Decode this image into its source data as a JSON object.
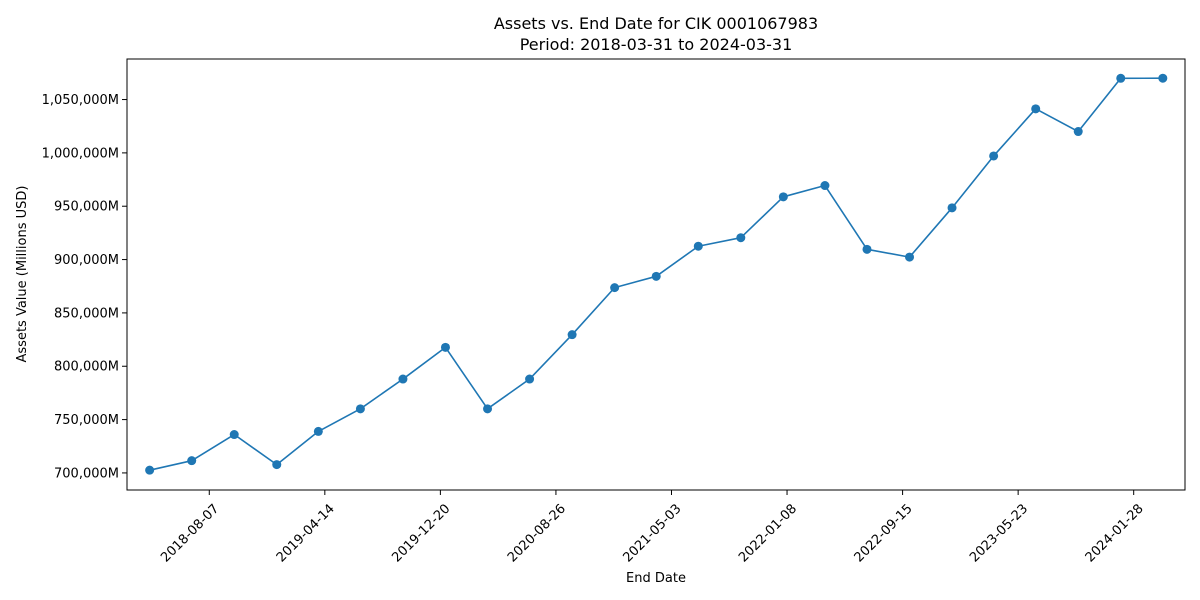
{
  "chart_data": {
    "type": "line",
    "title": "Assets vs. End Date for CIK 0001067983",
    "subtitle": "Period: 2018-03-31 to 2024-03-31",
    "xlabel": "End Date",
    "ylabel": "Assets Value (Millions USD)",
    "x_ticks": [
      "2018-08-07",
      "2019-04-14",
      "2019-12-20",
      "2020-08-26",
      "2021-05-03",
      "2022-01-08",
      "2022-09-15",
      "2023-05-23",
      "2024-01-28"
    ],
    "y_ticks": [
      700000,
      750000,
      800000,
      850000,
      900000,
      950000,
      1000000,
      1050000
    ],
    "y_tick_labels": [
      "700,000M",
      "750,000M",
      "800,000M",
      "850,000M",
      "900,000M",
      "950,000M",
      "1,000,000M",
      "1,050,000M"
    ],
    "xlim": [
      "2018-02-10",
      "2024-05-18"
    ],
    "ylim": [
      684000,
      1088000
    ],
    "grid": false,
    "color": "#1f77b4",
    "marker": "circle",
    "series": [
      {
        "x": [
          "2018-03-31",
          "2018-06-30",
          "2018-09-30",
          "2018-12-31",
          "2019-03-31",
          "2019-06-30",
          "2019-09-30",
          "2019-12-31",
          "2020-03-31",
          "2020-06-30",
          "2020-09-30",
          "2020-12-31",
          "2021-03-31",
          "2021-06-30",
          "2021-09-30",
          "2021-12-31",
          "2022-03-31",
          "2022-06-30",
          "2022-09-30",
          "2022-12-31",
          "2023-03-31",
          "2023-06-30",
          "2023-09-30",
          "2023-12-31",
          "2024-03-31"
        ],
        "y": [
          702600,
          711500,
          736000,
          707800,
          738900,
          760100,
          788000,
          817700,
          760100,
          788000,
          829600,
          873700,
          884300,
          912500,
          920500,
          958800,
          969400,
          909600,
          902300,
          948500,
          997100,
          1041300,
          1020000,
          1069900,
          1070000
        ]
      }
    ]
  }
}
